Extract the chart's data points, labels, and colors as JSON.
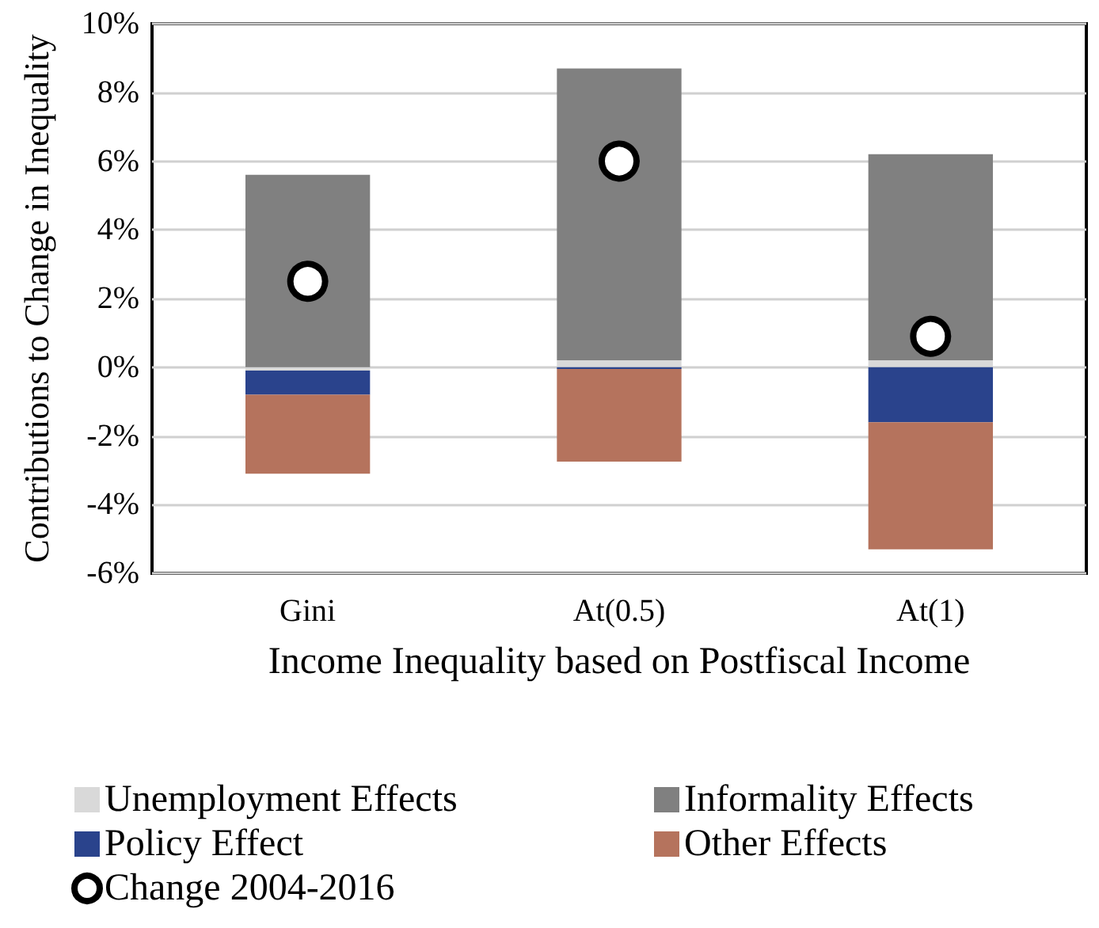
{
  "chart_data": {
    "type": "bar",
    "stacked": true,
    "xlabel": "Income Inequality based on Postfiscal Income",
    "ylabel": "Contributions to Change in Inequality",
    "categories": [
      "Gini",
      "At(0.5)",
      "At(1)"
    ],
    "series": [
      {
        "name": "Unemployment Effects",
        "color": "#d9d9d9",
        "values": [
          -0.1,
          0.2,
          0.2
        ]
      },
      {
        "name": "Informality Effects",
        "color": "#808080",
        "values": [
          5.6,
          8.5,
          6.0
        ]
      },
      {
        "name": "Policy Effect",
        "color": "#2a438c",
        "values": [
          -0.7,
          -0.05,
          -1.6
        ]
      },
      {
        "name": "Other Effects",
        "color": "#b5735d",
        "values": [
          -2.3,
          -2.7,
          -3.7
        ]
      },
      {
        "name": "Change 2004-2016",
        "type": "scatter",
        "color": "#000000",
        "values": [
          2.5,
          6.0,
          0.9
        ]
      }
    ],
    "ylim": [
      -6,
      10
    ],
    "yticks": [
      {
        "value": -6,
        "label": "-6%"
      },
      {
        "value": -4,
        "label": "-4%"
      },
      {
        "value": -2,
        "label": "-2%"
      },
      {
        "value": 0,
        "label": "0%"
      },
      {
        "value": 2,
        "label": "2%"
      },
      {
        "value": 4,
        "label": "4%"
      },
      {
        "value": 6,
        "label": "6%"
      },
      {
        "value": 8,
        "label": "8%"
      },
      {
        "value": 10,
        "label": "10%"
      }
    ],
    "grid": "y",
    "legend": "bottom",
    "marker": "circle"
  }
}
